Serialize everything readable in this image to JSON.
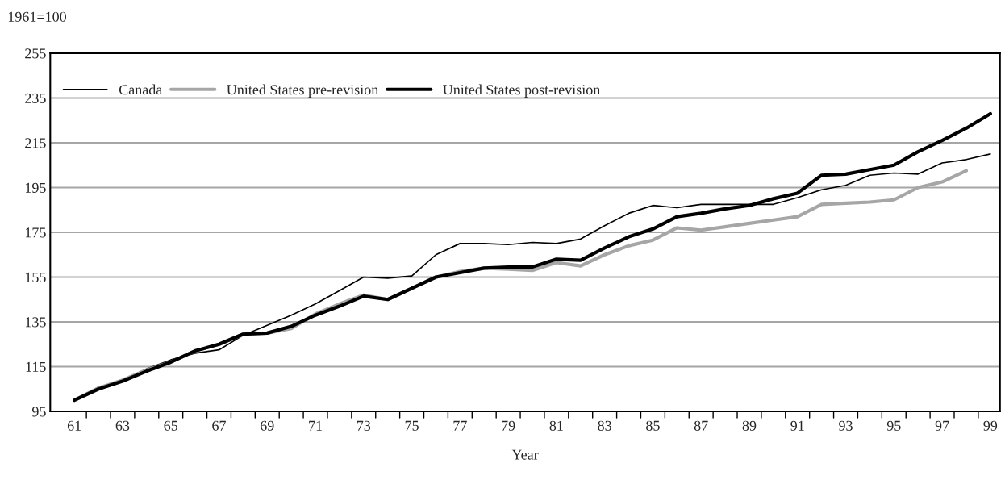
{
  "chart_data": {
    "type": "line",
    "ylabel": "1961=100",
    "xlabel": "Year",
    "categories": [
      "61",
      null,
      "63",
      null,
      "65",
      null,
      "67",
      null,
      "69",
      null,
      "71",
      null,
      "73",
      null,
      "75",
      null,
      "77",
      null,
      "79",
      null,
      "81",
      null,
      "83",
      null,
      "85",
      null,
      "87",
      null,
      "89",
      null,
      "91",
      null,
      "93",
      null,
      "95",
      null,
      "97",
      null,
      "99"
    ],
    "series": [
      {
        "name": "Canada",
        "color": "#000000",
        "values": [
          100,
          105,
          109,
          114,
          118,
          121,
          122.5,
          129,
          133.5,
          138,
          143,
          149,
          155,
          154.5,
          155.5,
          165,
          170,
          170,
          169.5,
          170.5,
          170,
          172,
          178,
          183.5,
          187,
          186,
          187.5,
          187.5,
          187.5,
          187.5,
          190.5,
          194,
          196,
          200.5,
          201.5,
          201,
          206,
          207.5,
          210
        ]
      },
      {
        "name": "United States pre-revision",
        "color": "#a6a6a6",
        "values": [
          100,
          105.5,
          109,
          113.5,
          117,
          122,
          125,
          129.5,
          130,
          132,
          138.5,
          143,
          147,
          145,
          150,
          155,
          157.5,
          159,
          158.5,
          158,
          161.5,
          160,
          165,
          169,
          171.5,
          177,
          176,
          177.5,
          179,
          180.5,
          182,
          187.5,
          188,
          188.5,
          189.5,
          195,
          197.5,
          202.5,
          null
        ]
      },
      {
        "name": "United States post-revision",
        "color": "#000000",
        "values": [
          100,
          105,
          108.5,
          113,
          117,
          122,
          125,
          129.5,
          130,
          133,
          138,
          142,
          146.5,
          145,
          150,
          155,
          157,
          159,
          159.5,
          159.5,
          163,
          162.5,
          168,
          173,
          176.5,
          182,
          183.5,
          185.5,
          187,
          190,
          192.5,
          200.5,
          201,
          203,
          205,
          211,
          216,
          221.5,
          228
        ]
      }
    ],
    "ylim": [
      95,
      255
    ],
    "yticks": [
      95,
      115,
      135,
      155,
      175,
      195,
      215,
      235,
      255
    ],
    "grid": "y",
    "legend": "top left"
  }
}
